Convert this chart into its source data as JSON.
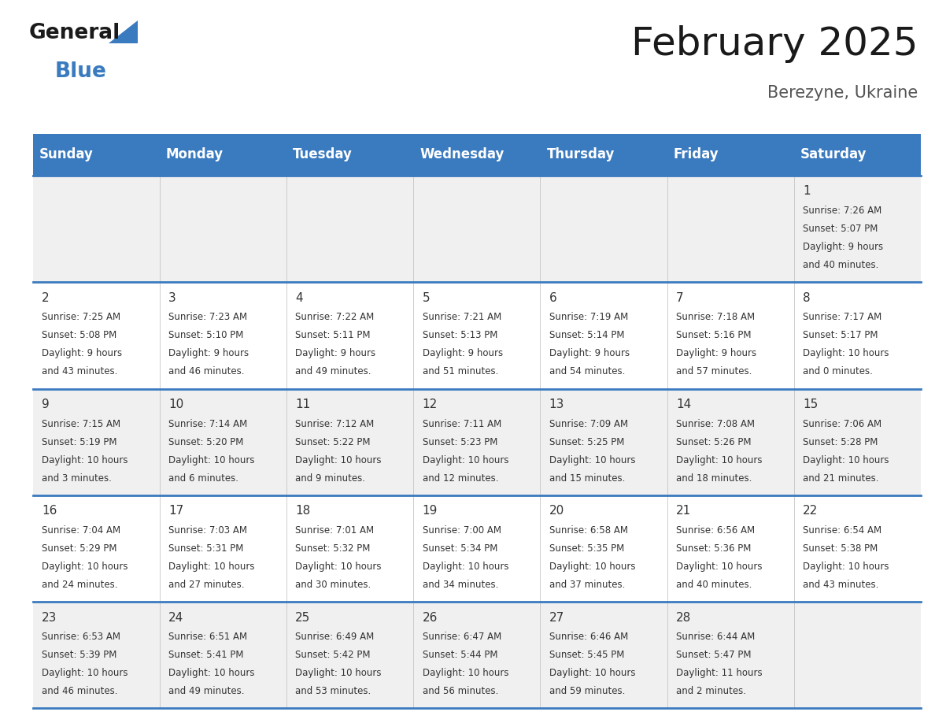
{
  "title": "February 2025",
  "subtitle": "Berezyne, Ukraine",
  "header_bg": "#3a7abf",
  "header_text_color": "#ffffff",
  "day_names": [
    "Sunday",
    "Monday",
    "Tuesday",
    "Wednesday",
    "Thursday",
    "Friday",
    "Saturday"
  ],
  "row_bg_even": "#f0f0f0",
  "row_bg_odd": "#ffffff",
  "cell_text_color": "#333333",
  "border_color": "#3a7abf",
  "title_color": "#1a1a1a",
  "subtitle_color": "#555555",
  "logo_general_color": "#1a1a1a",
  "logo_blue_color": "#3a7abf",
  "days": [
    {
      "day": 1,
      "col": 6,
      "row": 0,
      "sunrise": "7:26 AM",
      "sunset": "5:07 PM",
      "daylight_hours": "9 hours",
      "daylight_minutes": "and 40 minutes."
    },
    {
      "day": 2,
      "col": 0,
      "row": 1,
      "sunrise": "7:25 AM",
      "sunset": "5:08 PM",
      "daylight_hours": "9 hours",
      "daylight_minutes": "and 43 minutes."
    },
    {
      "day": 3,
      "col": 1,
      "row": 1,
      "sunrise": "7:23 AM",
      "sunset": "5:10 PM",
      "daylight_hours": "9 hours",
      "daylight_minutes": "and 46 minutes."
    },
    {
      "day": 4,
      "col": 2,
      "row": 1,
      "sunrise": "7:22 AM",
      "sunset": "5:11 PM",
      "daylight_hours": "9 hours",
      "daylight_minutes": "and 49 minutes."
    },
    {
      "day": 5,
      "col": 3,
      "row": 1,
      "sunrise": "7:21 AM",
      "sunset": "5:13 PM",
      "daylight_hours": "9 hours",
      "daylight_minutes": "and 51 minutes."
    },
    {
      "day": 6,
      "col": 4,
      "row": 1,
      "sunrise": "7:19 AM",
      "sunset": "5:14 PM",
      "daylight_hours": "9 hours",
      "daylight_minutes": "and 54 minutes."
    },
    {
      "day": 7,
      "col": 5,
      "row": 1,
      "sunrise": "7:18 AM",
      "sunset": "5:16 PM",
      "daylight_hours": "9 hours",
      "daylight_minutes": "and 57 minutes."
    },
    {
      "day": 8,
      "col": 6,
      "row": 1,
      "sunrise": "7:17 AM",
      "sunset": "5:17 PM",
      "daylight_hours": "10 hours",
      "daylight_minutes": "and 0 minutes."
    },
    {
      "day": 9,
      "col": 0,
      "row": 2,
      "sunrise": "7:15 AM",
      "sunset": "5:19 PM",
      "daylight_hours": "10 hours",
      "daylight_minutes": "and 3 minutes."
    },
    {
      "day": 10,
      "col": 1,
      "row": 2,
      "sunrise": "7:14 AM",
      "sunset": "5:20 PM",
      "daylight_hours": "10 hours",
      "daylight_minutes": "and 6 minutes."
    },
    {
      "day": 11,
      "col": 2,
      "row": 2,
      "sunrise": "7:12 AM",
      "sunset": "5:22 PM",
      "daylight_hours": "10 hours",
      "daylight_minutes": "and 9 minutes."
    },
    {
      "day": 12,
      "col": 3,
      "row": 2,
      "sunrise": "7:11 AM",
      "sunset": "5:23 PM",
      "daylight_hours": "10 hours",
      "daylight_minutes": "and 12 minutes."
    },
    {
      "day": 13,
      "col": 4,
      "row": 2,
      "sunrise": "7:09 AM",
      "sunset": "5:25 PM",
      "daylight_hours": "10 hours",
      "daylight_minutes": "and 15 minutes."
    },
    {
      "day": 14,
      "col": 5,
      "row": 2,
      "sunrise": "7:08 AM",
      "sunset": "5:26 PM",
      "daylight_hours": "10 hours",
      "daylight_minutes": "and 18 minutes."
    },
    {
      "day": 15,
      "col": 6,
      "row": 2,
      "sunrise": "7:06 AM",
      "sunset": "5:28 PM",
      "daylight_hours": "10 hours",
      "daylight_minutes": "and 21 minutes."
    },
    {
      "day": 16,
      "col": 0,
      "row": 3,
      "sunrise": "7:04 AM",
      "sunset": "5:29 PM",
      "daylight_hours": "10 hours",
      "daylight_minutes": "and 24 minutes."
    },
    {
      "day": 17,
      "col": 1,
      "row": 3,
      "sunrise": "7:03 AM",
      "sunset": "5:31 PM",
      "daylight_hours": "10 hours",
      "daylight_minutes": "and 27 minutes."
    },
    {
      "day": 18,
      "col": 2,
      "row": 3,
      "sunrise": "7:01 AM",
      "sunset": "5:32 PM",
      "daylight_hours": "10 hours",
      "daylight_minutes": "and 30 minutes."
    },
    {
      "day": 19,
      "col": 3,
      "row": 3,
      "sunrise": "7:00 AM",
      "sunset": "5:34 PM",
      "daylight_hours": "10 hours",
      "daylight_minutes": "and 34 minutes."
    },
    {
      "day": 20,
      "col": 4,
      "row": 3,
      "sunrise": "6:58 AM",
      "sunset": "5:35 PM",
      "daylight_hours": "10 hours",
      "daylight_minutes": "and 37 minutes."
    },
    {
      "day": 21,
      "col": 5,
      "row": 3,
      "sunrise": "6:56 AM",
      "sunset": "5:36 PM",
      "daylight_hours": "10 hours",
      "daylight_minutes": "and 40 minutes."
    },
    {
      "day": 22,
      "col": 6,
      "row": 3,
      "sunrise": "6:54 AM",
      "sunset": "5:38 PM",
      "daylight_hours": "10 hours",
      "daylight_minutes": "and 43 minutes."
    },
    {
      "day": 23,
      "col": 0,
      "row": 4,
      "sunrise": "6:53 AM",
      "sunset": "5:39 PM",
      "daylight_hours": "10 hours",
      "daylight_minutes": "and 46 minutes."
    },
    {
      "day": 24,
      "col": 1,
      "row": 4,
      "sunrise": "6:51 AM",
      "sunset": "5:41 PM",
      "daylight_hours": "10 hours",
      "daylight_minutes": "and 49 minutes."
    },
    {
      "day": 25,
      "col": 2,
      "row": 4,
      "sunrise": "6:49 AM",
      "sunset": "5:42 PM",
      "daylight_hours": "10 hours",
      "daylight_minutes": "and 53 minutes."
    },
    {
      "day": 26,
      "col": 3,
      "row": 4,
      "sunrise": "6:47 AM",
      "sunset": "5:44 PM",
      "daylight_hours": "10 hours",
      "daylight_minutes": "and 56 minutes."
    },
    {
      "day": 27,
      "col": 4,
      "row": 4,
      "sunrise": "6:46 AM",
      "sunset": "5:45 PM",
      "daylight_hours": "10 hours",
      "daylight_minutes": "and 59 minutes."
    },
    {
      "day": 28,
      "col": 5,
      "row": 4,
      "sunrise": "6:44 AM",
      "sunset": "5:47 PM",
      "daylight_hours": "11 hours",
      "daylight_minutes": "and 2 minutes."
    }
  ]
}
